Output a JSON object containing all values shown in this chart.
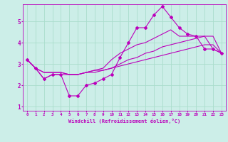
{
  "xlabel": "Windchill (Refroidissement éolien,°C)",
  "bg_color": "#cceee8",
  "grid_color": "#aaddcc",
  "line_color": "#bb00bb",
  "xlim": [
    -0.5,
    23.5
  ],
  "ylim": [
    0.8,
    5.8
  ],
  "xticks": [
    0,
    1,
    2,
    3,
    4,
    5,
    6,
    7,
    8,
    9,
    10,
    11,
    12,
    13,
    14,
    15,
    16,
    17,
    18,
    19,
    20,
    21,
    22,
    23
  ],
  "yticks": [
    1,
    2,
    3,
    4,
    5
  ],
  "lines": [
    {
      "x": [
        0,
        1,
        2,
        3,
        4,
        5,
        6,
        7,
        8,
        9,
        10,
        11,
        12,
        13,
        14,
        15,
        16,
        17,
        18,
        19,
        20,
        21,
        22,
        23
      ],
      "y": [
        3.2,
        2.8,
        2.3,
        2.5,
        2.5,
        1.5,
        1.5,
        2.0,
        2.1,
        2.3,
        2.5,
        3.3,
        4.0,
        4.7,
        4.7,
        5.3,
        5.7,
        5.2,
        4.7,
        4.4,
        4.3,
        3.7,
        3.7,
        3.5
      ],
      "marker": true
    },
    {
      "x": [
        0,
        1,
        2,
        3,
        4,
        5,
        6,
        7,
        8,
        9,
        10,
        11,
        12,
        13,
        14,
        15,
        16,
        17,
        18,
        19,
        20,
        21,
        22,
        23
      ],
      "y": [
        3.2,
        2.8,
        2.6,
        2.6,
        2.6,
        2.5,
        2.5,
        2.6,
        2.6,
        2.7,
        2.8,
        3.0,
        3.2,
        3.3,
        3.5,
        3.6,
        3.8,
        3.9,
        4.0,
        4.1,
        4.2,
        4.3,
        4.3,
        3.5
      ],
      "marker": false
    },
    {
      "x": [
        0,
        1,
        2,
        3,
        4,
        5,
        6,
        7,
        8,
        9,
        10,
        11,
        12,
        13,
        14,
        15,
        16,
        17,
        18,
        19,
        20,
        21,
        22,
        23
      ],
      "y": [
        3.2,
        2.8,
        2.6,
        2.6,
        2.6,
        2.5,
        2.5,
        2.6,
        2.7,
        2.8,
        3.2,
        3.5,
        3.7,
        3.9,
        4.0,
        4.2,
        4.4,
        4.6,
        4.3,
        4.3,
        4.3,
        4.3,
        3.7,
        3.5
      ],
      "marker": false
    },
    {
      "x": [
        0,
        1,
        2,
        3,
        4,
        5,
        6,
        7,
        8,
        9,
        10,
        11,
        12,
        13,
        14,
        15,
        16,
        17,
        18,
        19,
        20,
        21,
        22,
        23
      ],
      "y": [
        3.2,
        2.8,
        2.3,
        2.5,
        2.5,
        2.5,
        2.5,
        2.6,
        2.7,
        2.7,
        2.8,
        2.9,
        3.0,
        3.1,
        3.2,
        3.3,
        3.4,
        3.5,
        3.6,
        3.7,
        3.8,
        3.9,
        3.9,
        3.5
      ],
      "marker": false
    }
  ],
  "xlabel_fontsize": 5.0,
  "xtick_fontsize": 4.2,
  "ytick_fontsize": 5.5,
  "linewidth": 0.8,
  "marker_size": 2.0
}
